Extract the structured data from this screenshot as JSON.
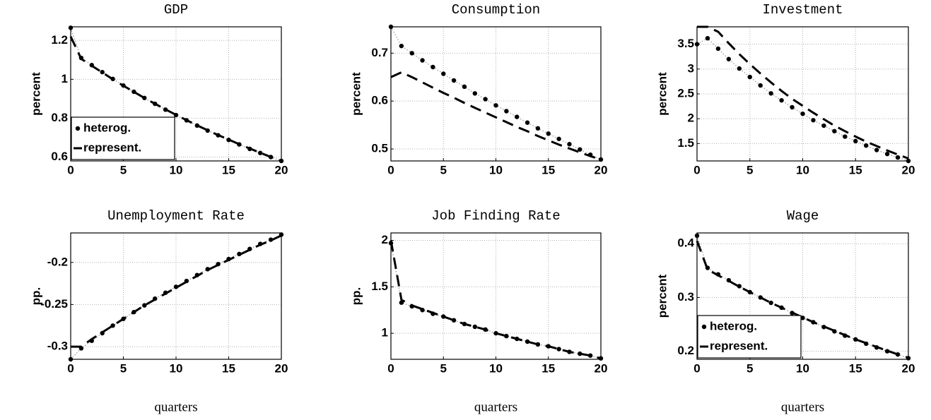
{
  "chart_data": [
    {
      "type": "line",
      "title": "GDP",
      "ylabel": "percent",
      "x": [
        0,
        1,
        2,
        3,
        4,
        5,
        6,
        7,
        8,
        9,
        10,
        11,
        12,
        13,
        14,
        15,
        16,
        17,
        18,
        19,
        20
      ],
      "xlim": [
        0,
        20
      ],
      "xticks": [
        0,
        5,
        10,
        15,
        20
      ],
      "ylim": [
        0.58,
        1.27
      ],
      "yticks": [
        0.6,
        0.8,
        1,
        1.2
      ],
      "grid": true,
      "legend": "lower left",
      "series": [
        {
          "name": "heterog.",
          "color": "#000000",
          "style": "dotted",
          "values": [
            1.265,
            1.11,
            1.073,
            1.037,
            1.002,
            0.968,
            0.936,
            0.904,
            0.874,
            0.844,
            0.816,
            0.789,
            0.762,
            0.736,
            0.712,
            0.688,
            0.665,
            0.642,
            0.621,
            0.6,
            0.58
          ]
        },
        {
          "name": "represent.",
          "color": "#000000",
          "style": "dashed",
          "values": [
            1.22,
            1.105,
            1.07,
            1.035,
            1.0,
            0.967,
            0.935,
            0.904,
            0.874,
            0.845,
            0.817,
            0.79,
            0.763,
            0.738,
            0.713,
            0.69,
            0.666,
            0.644,
            0.622,
            0.6,
            0.58
          ]
        }
      ]
    },
    {
      "type": "line",
      "title": "Consumption",
      "ylabel": "percent",
      "x": [
        0,
        1,
        2,
        3,
        4,
        5,
        6,
        7,
        8,
        9,
        10,
        11,
        12,
        13,
        14,
        15,
        16,
        17,
        18,
        19,
        20
      ],
      "xlim": [
        0,
        20
      ],
      "xticks": [
        0,
        5,
        10,
        15,
        20
      ],
      "ylim": [
        0.475,
        0.755
      ],
      "yticks": [
        0.5,
        0.6,
        0.7
      ],
      "grid": true,
      "series": [
        {
          "color": "#000000",
          "style": "dotted",
          "values": [
            0.755,
            0.715,
            0.7,
            0.685,
            0.671,
            0.657,
            0.643,
            0.63,
            0.616,
            0.604,
            0.591,
            0.579,
            0.567,
            0.555,
            0.543,
            0.532,
            0.521,
            0.51,
            0.499,
            0.488,
            0.478
          ]
        },
        {
          "color": "#000000",
          "style": "dashed",
          "values": [
            0.65,
            0.66,
            0.65,
            0.639,
            0.628,
            0.617,
            0.607,
            0.596,
            0.586,
            0.576,
            0.566,
            0.556,
            0.546,
            0.537,
            0.527,
            0.518,
            0.509,
            0.501,
            0.493,
            0.485,
            0.478
          ]
        }
      ]
    },
    {
      "type": "line",
      "title": "Investment",
      "ylabel": "percent",
      "x": [
        0,
        1,
        2,
        3,
        4,
        5,
        6,
        7,
        8,
        9,
        10,
        11,
        12,
        13,
        14,
        15,
        16,
        17,
        18,
        19,
        20
      ],
      "xlim": [
        0,
        20
      ],
      "xticks": [
        0,
        5,
        10,
        15,
        20
      ],
      "ylim": [
        1.15,
        3.85
      ],
      "yticks": [
        1.5,
        2,
        2.5,
        3,
        3.5
      ],
      "grid": true,
      "series": [
        {
          "color": "#000000",
          "style": "dotted",
          "values": [
            3.5,
            3.62,
            3.41,
            3.2,
            3.01,
            2.84,
            2.67,
            2.51,
            2.37,
            2.23,
            2.1,
            1.97,
            1.86,
            1.75,
            1.64,
            1.55,
            1.46,
            1.37,
            1.29,
            1.22,
            1.15
          ]
        },
        {
          "color": "#000000",
          "style": "dashed",
          "values": [
            3.85,
            3.85,
            3.75,
            3.52,
            3.3,
            3.1,
            2.91,
            2.73,
            2.56,
            2.4,
            2.26,
            2.12,
            1.99,
            1.86,
            1.75,
            1.64,
            1.54,
            1.45,
            1.36,
            1.28,
            1.2
          ]
        }
      ]
    },
    {
      "type": "line",
      "title": "Unemployment Rate",
      "ylabel": "pp.",
      "xlabel": "quarters",
      "x": [
        0,
        1,
        2,
        3,
        4,
        5,
        6,
        7,
        8,
        9,
        10,
        11,
        12,
        13,
        14,
        15,
        16,
        17,
        18,
        19,
        20
      ],
      "xlim": [
        0,
        20
      ],
      "xticks": [
        0,
        5,
        10,
        15,
        20
      ],
      "ylim": [
        -0.315,
        -0.165
      ],
      "yticks": [
        -0.3,
        -0.25,
        -0.2
      ],
      "grid": true,
      "series": [
        {
          "color": "#000000",
          "style": "dotted",
          "values": [
            -0.315,
            -0.302,
            -0.293,
            -0.284,
            -0.275,
            -0.267,
            -0.259,
            -0.251,
            -0.243,
            -0.236,
            -0.229,
            -0.222,
            -0.215,
            -0.208,
            -0.202,
            -0.196,
            -0.19,
            -0.184,
            -0.178,
            -0.173,
            -0.167
          ]
        },
        {
          "color": "#000000",
          "style": "dashed",
          "values": [
            -0.3,
            -0.3,
            -0.291,
            -0.283,
            -0.275,
            -0.267,
            -0.259,
            -0.251,
            -0.244,
            -0.237,
            -0.23,
            -0.223,
            -0.216,
            -0.209,
            -0.203,
            -0.197,
            -0.191,
            -0.185,
            -0.179,
            -0.174,
            -0.168
          ]
        }
      ]
    },
    {
      "type": "line",
      "title": "Job Finding Rate",
      "ylabel": "pp.",
      "xlabel": "quarters",
      "x": [
        0,
        1,
        2,
        3,
        4,
        5,
        6,
        7,
        8,
        9,
        10,
        11,
        12,
        13,
        14,
        15,
        16,
        17,
        18,
        19,
        20
      ],
      "xlim": [
        0,
        20
      ],
      "xticks": [
        0,
        5,
        10,
        15,
        20
      ],
      "ylim": [
        0.72,
        2.08
      ],
      "yticks": [
        1,
        1.5,
        2
      ],
      "grid": true,
      "series": [
        {
          "color": "#000000",
          "style": "dotted",
          "values": [
            1.97,
            1.33,
            1.29,
            1.25,
            1.21,
            1.18,
            1.14,
            1.1,
            1.07,
            1.04,
            1.0,
            0.97,
            0.94,
            0.91,
            0.88,
            0.86,
            0.83,
            0.8,
            0.78,
            0.76,
            0.73
          ]
        },
        {
          "color": "#000000",
          "style": "dashed",
          "values": [
            2.0,
            1.36,
            1.3,
            1.26,
            1.22,
            1.18,
            1.14,
            1.1,
            1.07,
            1.04,
            1.0,
            0.97,
            0.94,
            0.91,
            0.88,
            0.86,
            0.83,
            0.8,
            0.78,
            0.76,
            0.73
          ]
        }
      ]
    },
    {
      "type": "line",
      "title": "Wage",
      "ylabel": "percent",
      "xlabel": "quarters",
      "x": [
        0,
        1,
        2,
        3,
        4,
        5,
        6,
        7,
        8,
        9,
        10,
        11,
        12,
        13,
        14,
        15,
        16,
        17,
        18,
        19,
        20
      ],
      "xlim": [
        0,
        20
      ],
      "xticks": [
        0,
        5,
        10,
        15,
        20
      ],
      "ylim": [
        0.185,
        0.42
      ],
      "yticks": [
        0.2,
        0.3,
        0.4
      ],
      "grid": true,
      "legend": "lower left",
      "series": [
        {
          "name": "heterog.",
          "color": "#000000",
          "style": "dotted",
          "values": [
            0.415,
            0.355,
            0.343,
            0.332,
            0.321,
            0.31,
            0.3,
            0.29,
            0.281,
            0.271,
            0.262,
            0.254,
            0.245,
            0.237,
            0.229,
            0.222,
            0.214,
            0.207,
            0.2,
            0.194,
            0.187
          ]
        },
        {
          "name": "represent.",
          "color": "#000000",
          "style": "dashed",
          "values": [
            0.405,
            0.352,
            0.341,
            0.331,
            0.32,
            0.31,
            0.3,
            0.29,
            0.281,
            0.272,
            0.263,
            0.254,
            0.246,
            0.238,
            0.23,
            0.222,
            0.215,
            0.208,
            0.201,
            0.194,
            0.188
          ]
        }
      ]
    }
  ]
}
